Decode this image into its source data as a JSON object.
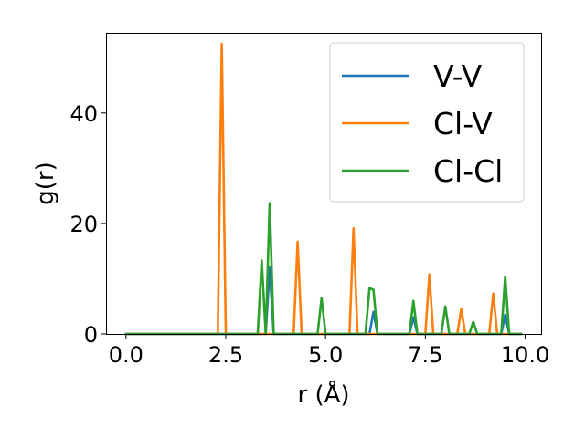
{
  "chart_data": {
    "type": "line",
    "xlabel": "r (Å)",
    "ylabel": "g(r)",
    "xlim": [
      -0.5,
      10.4
    ],
    "ylim": [
      0,
      54.5
    ],
    "xticks": [
      0.0,
      2.5,
      5.0,
      7.5,
      10.0
    ],
    "xtick_labels": [
      "0.0",
      "2.5",
      "5.0",
      "7.5",
      "10.0"
    ],
    "yticks": [
      0,
      20,
      40
    ],
    "ytick_labels": [
      "0",
      "20",
      "40"
    ],
    "legend_position": "top-right",
    "grid": false,
    "series": [
      {
        "name": "V-V",
        "color": "#1f77b4",
        "x": [
          0.0,
          3.5,
          3.6,
          3.7,
          6.1,
          6.2,
          6.3,
          7.1,
          7.2,
          7.3,
          9.4,
          9.5,
          9.6,
          9.9
        ],
        "y": [
          0,
          0,
          12,
          0,
          0,
          4,
          0,
          0,
          3,
          0,
          0,
          3.5,
          0,
          0
        ]
      },
      {
        "name": "Cl-V",
        "color": "#ff7f0e",
        "x": [
          0.0,
          2.3,
          2.4,
          2.5,
          4.2,
          4.3,
          4.4,
          5.6,
          5.7,
          5.8,
          7.5,
          7.6,
          7.7,
          8.3,
          8.4,
          8.5,
          9.1,
          9.2,
          9.3,
          9.9
        ],
        "y": [
          0,
          0,
          52.5,
          0,
          0,
          16.7,
          0,
          0,
          19.1,
          0,
          0,
          10.8,
          0,
          0,
          4.5,
          0,
          0,
          7.3,
          0,
          0
        ]
      },
      {
        "name": "Cl-Cl",
        "color": "#2ca02c",
        "x": [
          0.0,
          3.3,
          3.4,
          3.5,
          3.6,
          3.7,
          4.8,
          4.9,
          5.0,
          6.0,
          6.1,
          6.2,
          6.3,
          7.1,
          7.2,
          7.3,
          7.9,
          8.0,
          8.1,
          8.6,
          8.7,
          8.8,
          9.4,
          9.5,
          9.6,
          9.9
        ],
        "y": [
          0,
          0,
          13.3,
          0,
          23.7,
          0,
          0,
          6.5,
          0,
          0,
          8.3,
          8.0,
          0,
          0,
          6.0,
          0,
          0,
          5.0,
          0,
          0,
          2.2,
          0,
          0,
          10.4,
          0,
          0
        ]
      }
    ]
  }
}
